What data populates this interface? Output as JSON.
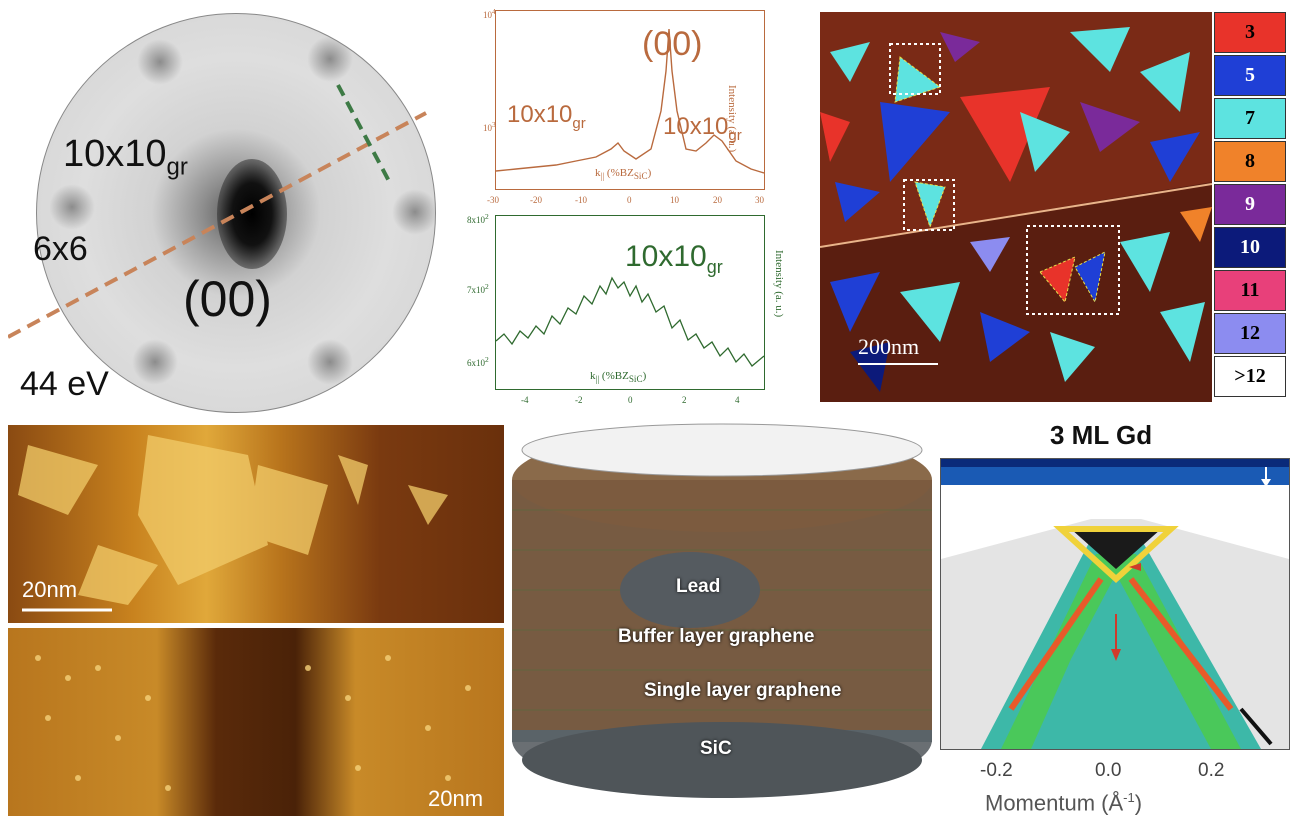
{
  "leed": {
    "label_spot": "10x10",
    "label_spot_sub": "gr",
    "label_6x6": "6x6",
    "label_00": "(00)",
    "energy": "44 eV"
  },
  "profile_top": {
    "peak_label": "(00)",
    "side_label": "10x10",
    "side_label_sub": "gr",
    "ylabel": "Intensity (a. u.)",
    "xlabel_main": "k",
    "xlabel_sub": "||",
    "xlabel_unit": "(%BZ",
    "xlabel_unit_sub": "SiC",
    "xlabel_close": ")",
    "y_ticks": [
      "10",
      "10"
    ],
    "y_tick_exps": [
      "4",
      "3"
    ],
    "x_ticks": [
      "-30",
      "-20",
      "-10",
      "0",
      "10",
      "20",
      "30"
    ]
  },
  "profile_bottom": {
    "peak_label": "10x10",
    "peak_label_sub": "gr",
    "ylabel": "Intensity (a. u.)",
    "xlabel_main": "k",
    "xlabel_sub": "||",
    "xlabel_unit": "(%BZ",
    "xlabel_unit_sub": "SiC",
    "xlabel_close": ")",
    "y_ticks": [
      "8x10",
      "7x10",
      "6x10"
    ],
    "y_tick_exps": [
      "2",
      "2",
      "2"
    ],
    "x_ticks": [
      "-4",
      "-2",
      "0",
      "2",
      "4"
    ]
  },
  "stm_map": {
    "scale_bar": "200nm",
    "legend": [
      {
        "label": "3",
        "color": "#e8332a",
        "text": "#000000"
      },
      {
        "label": "5",
        "color": "#1f3fd6",
        "text": "#ffffff"
      },
      {
        "label": "7",
        "color": "#5de3e0",
        "text": "#000000"
      },
      {
        "label": "8",
        "color": "#f0822a",
        "text": "#000000"
      },
      {
        "label": "9",
        "color": "#7a2a9a",
        "text": "#ffffff"
      },
      {
        "label": "10",
        "color": "#0c1a7a",
        "text": "#ffffff"
      },
      {
        "label": "11",
        "color": "#e8407a",
        "text": "#000000"
      },
      {
        "label": "12",
        "color": "#8c8cf0",
        "text": "#000000"
      },
      {
        "label": ">12",
        "color": "#ffffff",
        "text": "#000000"
      }
    ]
  },
  "stm_small": {
    "top_scale": "20nm",
    "bottom_scale": "20nm"
  },
  "schematic": {
    "lead": "Lead",
    "buffer": "Buffer layer graphene",
    "single": "Single layer graphene",
    "sic": "SiC"
  },
  "arpes": {
    "title": "3 ML Gd",
    "xlabel": "Momentum (Å",
    "xlabel_exp": "-1",
    "xlabel_close": ")",
    "x_ticks": [
      "-0.2",
      "0.0",
      "0.2"
    ]
  }
}
